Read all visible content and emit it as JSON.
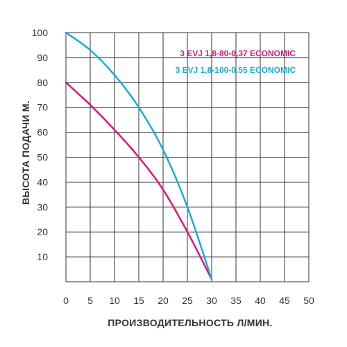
{
  "chart_data": {
    "type": "line",
    "xlabel": "ПРОИЗВОДИТЕЛЬНОСТЬ Л/МИН.",
    "ylabel": "ВЫСОТА ПОДАЧИ М.",
    "xlim": [
      0,
      50
    ],
    "ylim": [
      0,
      100
    ],
    "x_ticks": [
      0,
      5,
      10,
      15,
      20,
      25,
      30,
      35,
      40,
      45,
      50
    ],
    "y_ticks": [
      10,
      20,
      30,
      40,
      50,
      60,
      70,
      80,
      90,
      100
    ],
    "grid": true,
    "legend_position": "top-right",
    "series": [
      {
        "name": "3 EVJ 1,8-80-0,37 ECONOMIC",
        "color": "#e0147a",
        "points": [
          [
            0,
            80
          ],
          [
            5,
            71
          ],
          [
            10,
            61
          ],
          [
            15,
            50
          ],
          [
            20,
            37
          ],
          [
            25,
            20
          ],
          [
            30,
            1
          ]
        ]
      },
      {
        "name": "3 EVJ 1,8-100-0.55 ECONOMIC",
        "color": "#1aabd6",
        "points": [
          [
            0,
            100
          ],
          [
            5,
            93
          ],
          [
            10,
            83
          ],
          [
            15,
            70
          ],
          [
            20,
            53
          ],
          [
            25,
            30
          ],
          [
            30,
            1
          ]
        ]
      }
    ]
  }
}
